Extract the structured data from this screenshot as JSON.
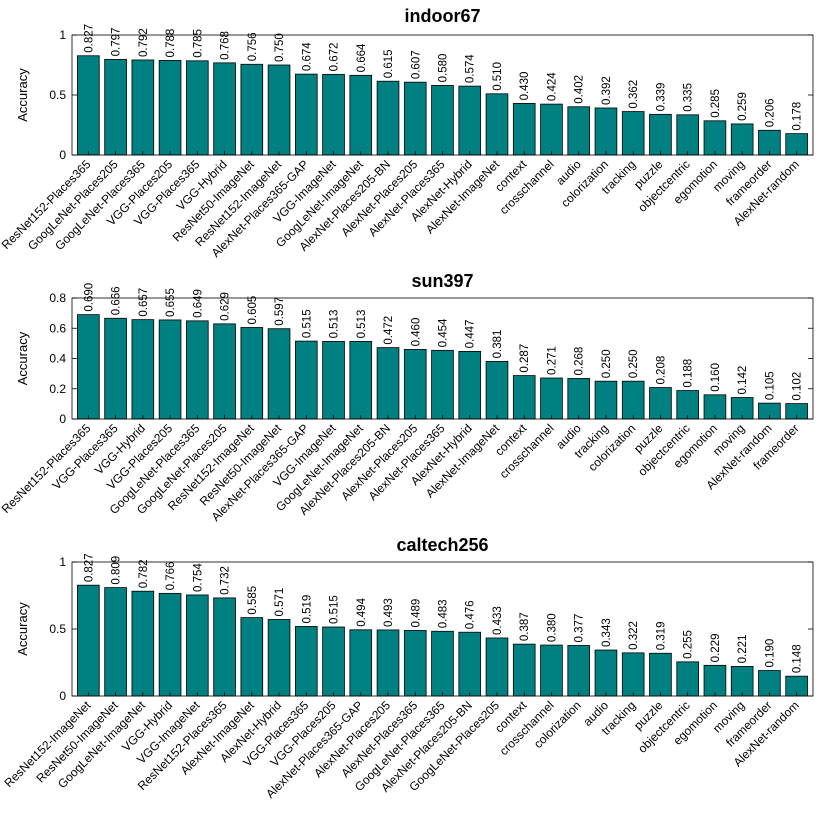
{
  "chart_data": [
    {
      "type": "bar",
      "title": "indoor67",
      "ylabel": "Accuracy",
      "xlabel": "",
      "ylim": [
        0,
        1
      ],
      "yticks": [
        0,
        0.5,
        1
      ],
      "ytick_labels": [
        "0",
        "0.5",
        "1"
      ],
      "categories": [
        "ResNet152-Places365",
        "GoogLeNet-Places205",
        "GoogLeNet-Places365",
        "VGG-Places205",
        "VGG-Places365",
        "VGG-Hybrid",
        "ResNet50-ImageNet",
        "ResNet152-ImageNet",
        "AlexNet-Places365-GAP",
        "VGG-ImageNet",
        "GoogLeNet-ImageNet",
        "AlexNet-Places205-BN",
        "AlexNet-Places205",
        "AlexNet-Places365",
        "AlexNet-Hybrid",
        "AlexNet-ImageNet",
        "context",
        "crosschannel",
        "audio",
        "colorization",
        "tracking",
        "puzzle",
        "objectcentric",
        "egomotion",
        "moving",
        "frameorder",
        "AlexNet-random"
      ],
      "values": [
        0.827,
        0.797,
        0.792,
        0.788,
        0.785,
        0.768,
        0.756,
        0.75,
        0.674,
        0.672,
        0.664,
        0.615,
        0.607,
        0.58,
        0.574,
        0.51,
        0.43,
        0.424,
        0.402,
        0.392,
        0.362,
        0.339,
        0.335,
        0.285,
        0.259,
        0.206,
        0.178
      ],
      "value_labels": [
        "0.827",
        "0.797",
        "0.792",
        "0.788",
        "0.785",
        "0.768",
        "0.756",
        "0.750",
        "0.674",
        "0.672",
        "0.664",
        "0.615",
        "0.607",
        "0.580",
        "0.574",
        "0.510",
        "0.430",
        "0.424",
        "0.402",
        "0.392",
        "0.362",
        "0.339",
        "0.335",
        "0.285",
        "0.259",
        "0.206",
        "0.178"
      ],
      "bar_color": "#008080",
      "grid": false
    },
    {
      "type": "bar",
      "title": "sun397",
      "ylabel": "Accuracy",
      "xlabel": "",
      "ylim": [
        0,
        0.8
      ],
      "yticks": [
        0,
        0.2,
        0.4,
        0.6,
        0.8
      ],
      "ytick_labels": [
        "0",
        "0.2",
        "0.4",
        "0.6",
        "0.8"
      ],
      "categories": [
        "ResNet152-Places365",
        "VGG-Places365",
        "VGG-Hybrid",
        "VGG-Places205",
        "GoogLeNet-Places365",
        "GoogLeNet-Places205",
        "ResNet152-ImageNet",
        "ResNet50-ImageNet",
        "AlexNet-Places365-GAP",
        "VGG-ImageNet",
        "GoogLeNet-ImageNet",
        "AlexNet-Places205-BN",
        "AlexNet-Places205",
        "AlexNet-Places365",
        "AlexNet-Hybrid",
        "AlexNet-ImageNet",
        "context",
        "crosschannel",
        "audio",
        "tracking",
        "colorization",
        "puzzle",
        "objectcentric",
        "egomotion",
        "moving",
        "AlexNet-random",
        "frameorder"
      ],
      "values": [
        0.69,
        0.666,
        0.657,
        0.655,
        0.649,
        0.629,
        0.605,
        0.597,
        0.515,
        0.513,
        0.513,
        0.472,
        0.46,
        0.454,
        0.447,
        0.381,
        0.287,
        0.271,
        0.268,
        0.25,
        0.25,
        0.208,
        0.188,
        0.16,
        0.142,
        0.105,
        0.102
      ],
      "value_labels": [
        "0.690",
        "0.666",
        "0.657",
        "0.655",
        "0.649",
        "0.629",
        "0.605",
        "0.597",
        "0.515",
        "0.513",
        "0.513",
        "0.472",
        "0.460",
        "0.454",
        "0.447",
        "0.381",
        "0.287",
        "0.271",
        "0.268",
        "0.250",
        "0.250",
        "0.208",
        "0.188",
        "0.160",
        "0.142",
        "0.105",
        "0.102"
      ],
      "bar_color": "#008080",
      "grid": false
    },
    {
      "type": "bar",
      "title": "caltech256",
      "ylabel": "Accuracy",
      "xlabel": "",
      "ylim": [
        0,
        1
      ],
      "yticks": [
        0,
        0.5,
        1
      ],
      "ytick_labels": [
        "0",
        "0.5",
        "1"
      ],
      "categories": [
        "ResNet152-ImageNet",
        "ResNet50-ImageNet",
        "GoogLeNet-ImageNet",
        "VGG-Hybrid",
        "VGG-ImageNet",
        "ResNet152-Places365",
        "AlexNet-ImageNet",
        "AlexNet-Hybrid",
        "VGG-Places365",
        "VGG-Places205",
        "AlexNet-Places365-GAP",
        "AlexNet-Places205",
        "AlexNet-Places365",
        "GoogLeNet-Places365",
        "AlexNet-Places205-BN",
        "GoogLeNet-Places205",
        "context",
        "crosschannel",
        "colorization",
        "audio",
        "tracking",
        "puzzle",
        "objectcentric",
        "egomotion",
        "moving",
        "frameorder",
        "AlexNet-random"
      ],
      "values": [
        0.827,
        0.809,
        0.782,
        0.766,
        0.754,
        0.732,
        0.585,
        0.571,
        0.519,
        0.515,
        0.494,
        0.493,
        0.489,
        0.483,
        0.476,
        0.433,
        0.387,
        0.38,
        0.377,
        0.343,
        0.322,
        0.319,
        0.255,
        0.229,
        0.221,
        0.19,
        0.148
      ],
      "value_labels": [
        "0.827",
        "0.809",
        "0.782",
        "0.766",
        "0.754",
        "0.732",
        "0.585",
        "0.571",
        "0.519",
        "0.515",
        "0.494",
        "0.493",
        "0.489",
        "0.483",
        "0.476",
        "0.433",
        "0.387",
        "0.380",
        "0.377",
        "0.343",
        "0.322",
        "0.319",
        "0.255",
        "0.229",
        "0.221",
        "0.190",
        "0.148"
      ],
      "bar_color": "#008080",
      "grid": false
    }
  ]
}
